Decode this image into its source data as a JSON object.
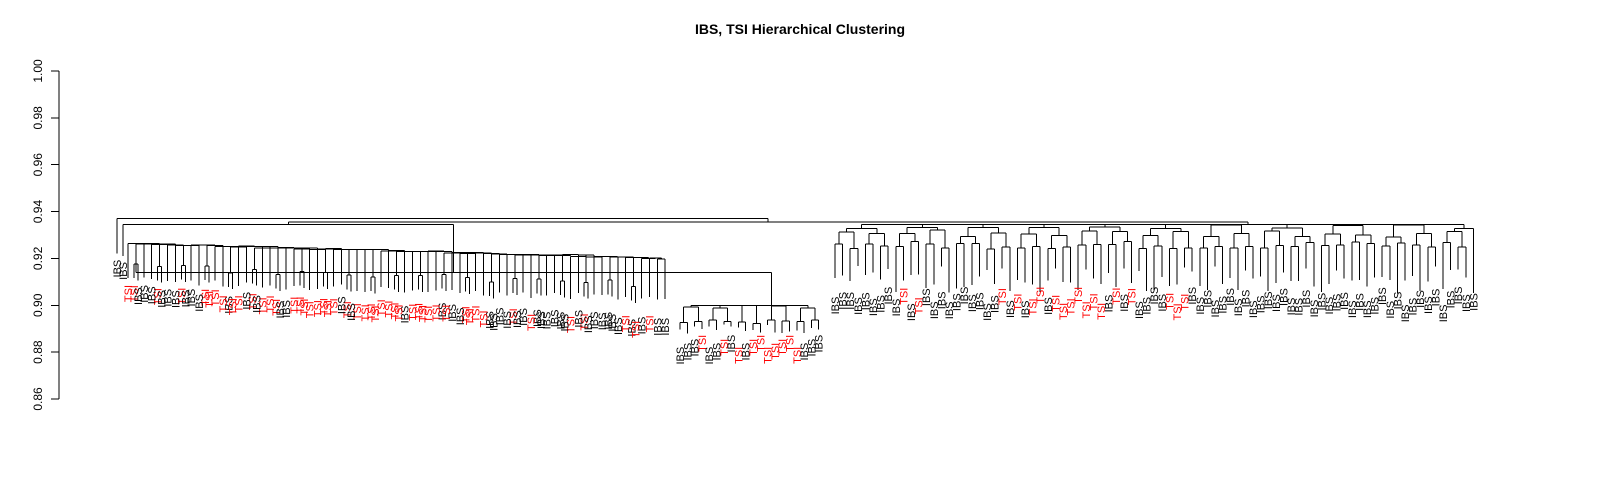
{
  "chart_data": {
    "type": "dendrogram",
    "title": "IBS, TSI Hierarchical Clustering",
    "ylim": [
      0.86,
      1.0
    ],
    "yticks": [
      "0.86",
      "0.88",
      "0.90",
      "0.92",
      "0.94",
      "0.96",
      "0.98",
      "1.00"
    ],
    "xlabel": "",
    "ylabel": "",
    "grid": false,
    "legend": "none",
    "groups": [
      {
        "name": "IBS",
        "color": "#000000"
      },
      {
        "name": "TSI",
        "color": "#ff0000"
      }
    ],
    "leaf_label_series": [
      "IBS",
      "IBS",
      "IBS",
      "IBS",
      "TSI",
      "IBS",
      "IBS",
      "TSI",
      "TSI",
      "IBS",
      "IBS",
      "IBS",
      "IBS",
      "IBS",
      "TSI",
      "IBS",
      "IBS",
      "TSI",
      "IBS",
      "IBS",
      "IBS",
      "IBS",
      "IBS",
      "IBS",
      "TSI",
      "IBS",
      "TSI",
      "IBS",
      "IBS",
      "IBS",
      "IBS",
      "IBS",
      "TSI",
      "TSI",
      "TSI",
      "TSI",
      "IBS",
      "IBS",
      "IBS",
      "TSI",
      "TSI",
      "TSI",
      "TSI",
      "TSI",
      "TSI",
      "IBS",
      "TSI",
      "TSI",
      "TSI",
      "TSI",
      "TSI",
      "TSI",
      "TSI",
      "TSI",
      "TSI",
      "IBS",
      "IBS",
      "TSI",
      "TSI",
      "TSI",
      "TSI",
      "TSI",
      "TSI",
      "TSI",
      "TSI",
      "IBS",
      "TSI",
      "IBS",
      "TSI",
      "TSI",
      "TSI",
      "IBS",
      "IBS",
      "TSI",
      "IBS",
      "TSI",
      "TSI",
      "TSI",
      "TSI",
      "TSI",
      "IBS",
      "IBS",
      "TSI",
      "IBS",
      "IBS",
      "IBS",
      "TSI",
      "IBS",
      "IBS",
      "IBS",
      "TSI",
      "IBS",
      "TSI",
      "IBS",
      "IBS",
      "IBS",
      "TSI",
      "IBS",
      "IBS",
      "TSI",
      "IBS",
      "TSI",
      "IBS",
      "TSI",
      "TSI",
      "TSI",
      "TSI",
      "TSI",
      "TSI",
      "TSI",
      "IBS",
      "IBS",
      "IBS",
      "IBS",
      "IBS",
      "IBS",
      "IBS",
      "IBS",
      "IBS",
      "IBS",
      "IBS",
      "IBS",
      "TSI",
      "IBS",
      "TSI",
      "IBS",
      "IBS",
      "IBS",
      "IBS",
      "IBS",
      "IBS",
      "IBS",
      "IBS",
      "IBS",
      "IBS",
      "TSI",
      "IBS",
      "TSI",
      "IBS",
      "TSI",
      "TSI",
      "IBS",
      "TSI",
      "TSI",
      "TSI",
      "TSI",
      "TSI",
      "TSI",
      "TSI",
      "IBS",
      "TSI",
      "IBS",
      "TSI",
      "IBS",
      "IBS",
      "IBS",
      "IBS",
      "TSI",
      "TSI",
      "TSI"
    ],
    "top_merges": [
      {
        "between": "outer left singletons + rest",
        "height": 0.937
      },
      {
        "between": "left branch / right branch",
        "height": 0.934
      },
      {
        "between": "left cluster / TSI subcluster",
        "height": 0.936
      }
    ]
  }
}
